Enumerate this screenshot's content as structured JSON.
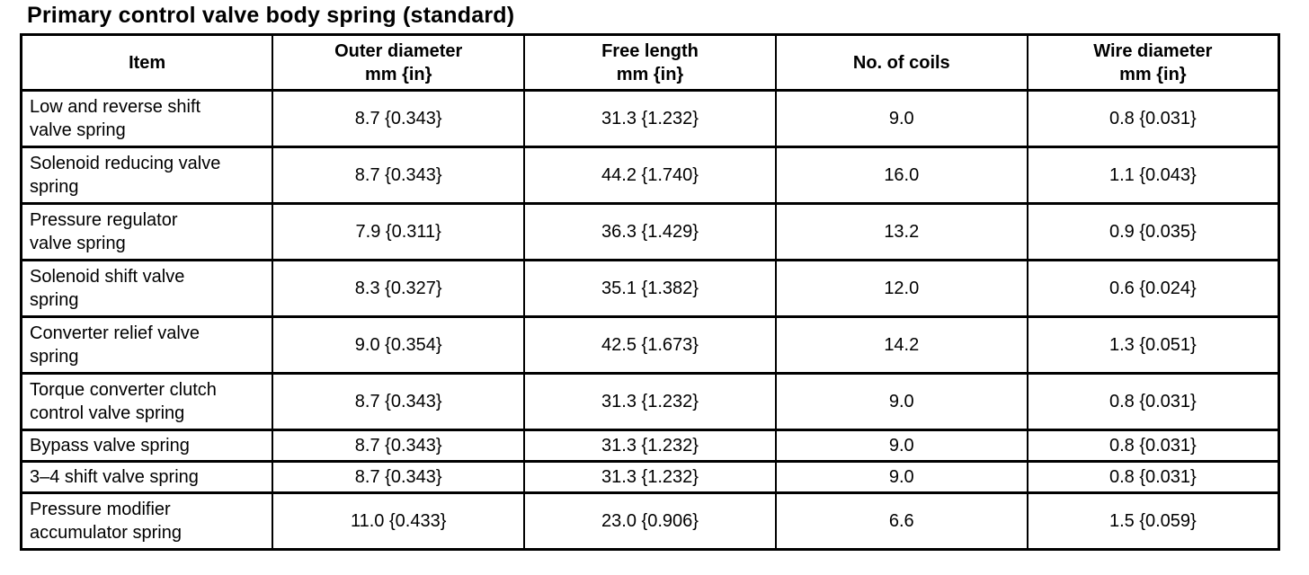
{
  "title": "Primary control valve body spring (standard)",
  "table": {
    "headers": [
      "Item",
      "Outer diameter\nmm {in}",
      "Free length\nmm {in}",
      "No. of coils",
      "Wire diameter\nmm {in}"
    ],
    "rows": [
      {
        "item": "Low and reverse shift\nvalve spring",
        "outer_diameter": "8.7 {0.343}",
        "free_length": "31.3 {1.232}",
        "no_of_coils": "9.0",
        "wire_diameter": "0.8 {0.031}"
      },
      {
        "item": "Solenoid reducing valve\nspring",
        "outer_diameter": "8.7 {0.343}",
        "free_length": "44.2 {1.740}",
        "no_of_coils": "16.0",
        "wire_diameter": "1.1 {0.043}"
      },
      {
        "item": "Pressure regulator\nvalve spring",
        "outer_diameter": "7.9 {0.311}",
        "free_length": "36.3 {1.429}",
        "no_of_coils": "13.2",
        "wire_diameter": "0.9 {0.035}"
      },
      {
        "item": "Solenoid shift valve\nspring",
        "outer_diameter": "8.3 {0.327}",
        "free_length": "35.1 {1.382}",
        "no_of_coils": "12.0",
        "wire_diameter": "0.6 {0.024}"
      },
      {
        "item": "Converter relief valve\nspring",
        "outer_diameter": "9.0 {0.354}",
        "free_length": "42.5 {1.673}",
        "no_of_coils": "14.2",
        "wire_diameter": "1.3 {0.051}"
      },
      {
        "item": "Torque converter clutch\ncontrol valve spring",
        "outer_diameter": "8.7 {0.343}",
        "free_length": "31.3 {1.232}",
        "no_of_coils": "9.0",
        "wire_diameter": "0.8 {0.031}"
      },
      {
        "item": "Bypass valve spring",
        "outer_diameter": "8.7 {0.343}",
        "free_length": "31.3 {1.232}",
        "no_of_coils": "9.0",
        "wire_diameter": "0.8 {0.031}"
      },
      {
        "item": "3–4 shift valve spring",
        "outer_diameter": "8.7 {0.343}",
        "free_length": "31.3 {1.232}",
        "no_of_coils": "9.0",
        "wire_diameter": "0.8 {0.031}"
      },
      {
        "item": "Pressure modifier\naccumulator spring",
        "outer_diameter": "11.0 {0.433}",
        "free_length": "23.0 {0.906}",
        "no_of_coils": "6.6",
        "wire_diameter": "1.5 {0.059}"
      }
    ]
  }
}
